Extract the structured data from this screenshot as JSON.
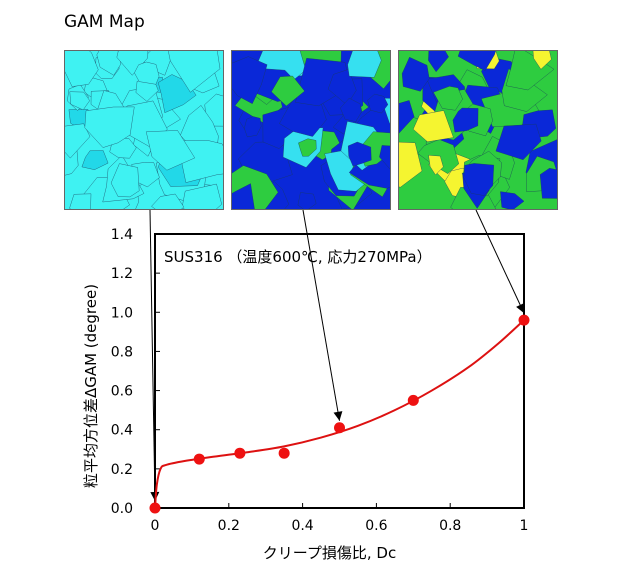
{
  "header": {
    "title": "GAM Map"
  },
  "maps": [
    {
      "name": "map-dc-0",
      "fill": "#3ff2f2",
      "colors": [
        "#3ff2f2",
        "#3ff2f2",
        "#3ff2f2",
        "#3ff2f2",
        "#22d8e8"
      ],
      "linkedPoint": 0
    },
    {
      "name": "map-dc-0.5",
      "fill": "#0a28d8",
      "colors": [
        "#0a28d8",
        "#0a28d8",
        "#36e0f0",
        "#2ecc40",
        "#0a28d8"
      ],
      "linkedPoint": 4
    },
    {
      "name": "map-dc-1",
      "fill": "#2ecc40",
      "colors": [
        "#0a28d8",
        "#2ecc40",
        "#f5f530",
        "#2ecc40",
        "#0a28d8"
      ],
      "linkedPoint": 6
    }
  ],
  "chart_data": {
    "type": "scatter",
    "annotation": "SUS316 （温度600℃, 応力270MPa）",
    "xlabel": "クリープ損傷比, Dc",
    "ylabel": "粒平均方位差ΔGAM (degree)",
    "xlim": [
      0,
      1
    ],
    "ylim": [
      0,
      1.4
    ],
    "xticks": [
      0,
      0.2,
      0.4,
      0.6,
      0.8,
      1
    ],
    "xtick_labels": [
      "0",
      "0.2",
      "0.4",
      "0.6",
      "0.8",
      "1"
    ],
    "yticks": [
      0,
      0.2,
      0.4,
      0.6,
      0.8,
      1.0,
      1.2,
      1.4
    ],
    "ytick_labels": [
      "0.0",
      "0.2",
      "0.4",
      "0.6",
      "0.8",
      "1.0",
      "1.2",
      "1.4"
    ],
    "points": [
      {
        "x": 0,
        "y": 0
      },
      {
        "x": 0.12,
        "y": 0.25
      },
      {
        "x": 0.23,
        "y": 0.28
      },
      {
        "x": 0.35,
        "y": 0.28
      },
      {
        "x": 0.5,
        "y": 0.41
      },
      {
        "x": 0.7,
        "y": 0.55
      },
      {
        "x": 1.0,
        "y": 0.96
      }
    ],
    "fit_curve": [
      [
        0,
        0
      ],
      [
        0.005,
        0.12
      ],
      [
        0.015,
        0.2
      ],
      [
        0.03,
        0.22
      ],
      [
        0.08,
        0.24
      ],
      [
        0.15,
        0.26
      ],
      [
        0.25,
        0.285
      ],
      [
        0.35,
        0.315
      ],
      [
        0.45,
        0.36
      ],
      [
        0.55,
        0.42
      ],
      [
        0.65,
        0.5
      ],
      [
        0.75,
        0.6
      ],
      [
        0.85,
        0.72
      ],
      [
        0.93,
        0.84
      ],
      [
        1.0,
        0.96
      ]
    ],
    "point_color": "#ee1111",
    "curve_color": "#dd1111",
    "grid": false
  }
}
